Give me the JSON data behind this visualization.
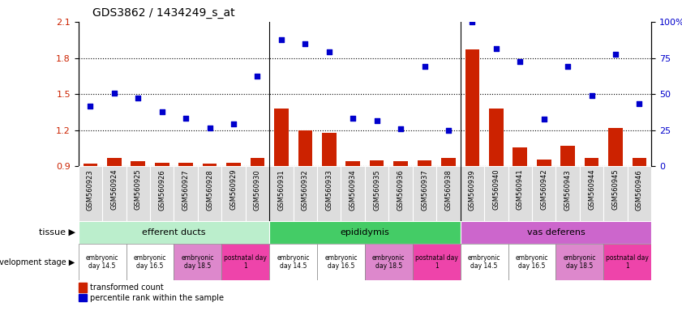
{
  "title": "GDS3862 / 1434249_s_at",
  "samples": [
    "GSM560923",
    "GSM560924",
    "GSM560925",
    "GSM560926",
    "GSM560927",
    "GSM560928",
    "GSM560929",
    "GSM560930",
    "GSM560931",
    "GSM560932",
    "GSM560933",
    "GSM560934",
    "GSM560935",
    "GSM560936",
    "GSM560937",
    "GSM560938",
    "GSM560939",
    "GSM560940",
    "GSM560941",
    "GSM560942",
    "GSM560943",
    "GSM560944",
    "GSM560945",
    "GSM560946"
  ],
  "bar_values": [
    0.92,
    0.97,
    0.94,
    0.93,
    0.93,
    0.92,
    0.93,
    0.97,
    1.38,
    1.2,
    1.18,
    0.94,
    0.95,
    0.94,
    0.95,
    0.97,
    1.87,
    1.38,
    1.06,
    0.96,
    1.07,
    0.97,
    1.22,
    0.97
  ],
  "scatter_values": [
    1.4,
    1.51,
    1.47,
    1.35,
    1.3,
    1.22,
    1.25,
    1.65,
    1.95,
    1.92,
    1.85,
    1.3,
    1.28,
    1.21,
    1.73,
    1.2,
    2.1,
    1.88,
    1.77,
    1.29,
    1.73,
    1.49,
    1.83,
    1.42
  ],
  "bar_color": "#cc2200",
  "scatter_color": "#0000cc",
  "ylim_left": [
    0.9,
    2.1
  ],
  "ylim_right": [
    0,
    100
  ],
  "yticks_left": [
    0.9,
    1.2,
    1.5,
    1.8,
    2.1
  ],
  "yticks_right": [
    0,
    25,
    50,
    75,
    100
  ],
  "tissue_boundaries": [
    {
      "label": "efferent ducts",
      "start": 0,
      "end": 8,
      "color": "#bbeecc"
    },
    {
      "label": "epididymis",
      "start": 8,
      "end": 16,
      "color": "#44cc66"
    },
    {
      "label": "vas deferens",
      "start": 16,
      "end": 24,
      "color": "#cc66cc"
    }
  ],
  "dev_groups": [
    {
      "label": "embryonic\nday 14.5",
      "start": 0,
      "end": 2,
      "color": "#ffffff"
    },
    {
      "label": "embryonic\nday 16.5",
      "start": 2,
      "end": 4,
      "color": "#ffffff"
    },
    {
      "label": "embryonic\nday 18.5",
      "start": 4,
      "end": 6,
      "color": "#dd88cc"
    },
    {
      "label": "postnatal day\n1",
      "start": 6,
      "end": 8,
      "color": "#ee44aa"
    },
    {
      "label": "embryonic\nday 14.5",
      "start": 8,
      "end": 10,
      "color": "#ffffff"
    },
    {
      "label": "embryonic\nday 16.5",
      "start": 10,
      "end": 12,
      "color": "#ffffff"
    },
    {
      "label": "embryonic\nday 18.5",
      "start": 12,
      "end": 14,
      "color": "#dd88cc"
    },
    {
      "label": "postnatal day\n1",
      "start": 14,
      "end": 16,
      "color": "#ee44aa"
    },
    {
      "label": "embryonic\nday 14.5",
      "start": 16,
      "end": 18,
      "color": "#ffffff"
    },
    {
      "label": "embryonic\nday 16.5",
      "start": 18,
      "end": 20,
      "color": "#ffffff"
    },
    {
      "label": "embryonic\nday 18.5",
      "start": 20,
      "end": 22,
      "color": "#dd88cc"
    },
    {
      "label": "postnatal day\n1",
      "start": 22,
      "end": 24,
      "color": "#ee44aa"
    }
  ],
  "legend_bar_label": "transformed count",
  "legend_scatter_label": "percentile rank within the sample",
  "tissue_label": "tissue",
  "dev_stage_label": "development stage",
  "sample_box_color": "#dddddd",
  "title_fontsize": 10
}
